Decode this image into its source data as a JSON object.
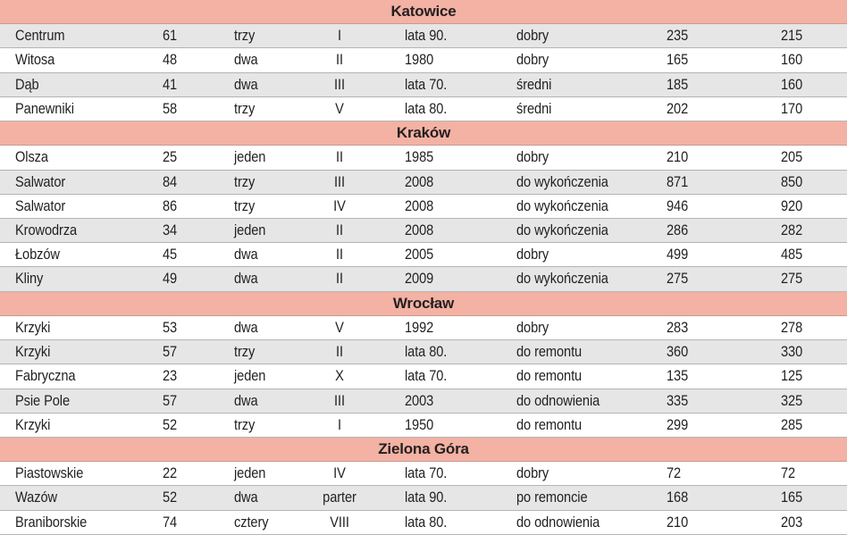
{
  "sections": [
    {
      "city": "Katowice",
      "rows": [
        [
          "Centrum",
          "61",
          "trzy",
          "I",
          "lata 90.",
          "dobry",
          "235",
          "215"
        ],
        [
          "Witosa",
          "48",
          "dwa",
          "II",
          "1980",
          "dobry",
          "165",
          "160"
        ],
        [
          "Dąb",
          "41",
          "dwa",
          "III",
          "lata 70.",
          "średni",
          "185",
          "160"
        ],
        [
          "Panewniki",
          "58",
          "trzy",
          "V",
          "lata 80.",
          "średni",
          "202",
          "170"
        ]
      ]
    },
    {
      "city": "Kraków",
      "rows": [
        [
          "Olsza",
          "25",
          "jeden",
          "II",
          "1985",
          "dobry",
          "210",
          "205"
        ],
        [
          "Salwator",
          "84",
          "trzy",
          "III",
          "2008",
          "do wykończenia",
          "871",
          "850"
        ],
        [
          "Salwator",
          "86",
          "trzy",
          "IV",
          "2008",
          "do wykończenia",
          "946",
          "920"
        ],
        [
          "Krowodrza",
          "34",
          "jeden",
          "II",
          "2008",
          "do wykończenia",
          "286",
          "282"
        ],
        [
          "Łobzów",
          "45",
          "dwa",
          "II",
          "2005",
          "dobry",
          "499",
          "485"
        ],
        [
          "Kliny",
          "49",
          "dwa",
          "II",
          "2009",
          "do wykończenia",
          "275",
          "275"
        ]
      ]
    },
    {
      "city": "Wrocław",
      "rows": [
        [
          "Krzyki",
          "53",
          "dwa",
          "V",
          "1992",
          "dobry",
          "283",
          "278"
        ],
        [
          "Krzyki",
          "57",
          "trzy",
          "II",
          "lata 80.",
          "do remontu",
          "360",
          "330"
        ],
        [
          "Fabryczna",
          "23",
          "jeden",
          "X",
          "lata 70.",
          "do remontu",
          "135",
          "125"
        ],
        [
          "Psie Pole",
          "57",
          "dwa",
          "III",
          "2003",
          "do odnowienia",
          "335",
          "325"
        ],
        [
          "Krzyki",
          "52",
          "trzy",
          "I",
          "1950",
          "do remontu",
          "299",
          "285"
        ]
      ]
    },
    {
      "city": "Zielona Góra",
      "rows": [
        [
          "Piastowskie",
          "22",
          "jeden",
          "IV",
          "lata 70.",
          "dobry",
          "72",
          "72"
        ],
        [
          "Wazów",
          "52",
          "dwa",
          "parter",
          "lata 90.",
          "po remoncie",
          "168",
          "165"
        ],
        [
          "Braniborskie",
          "74",
          "cztery",
          "VIII",
          "lata 80.",
          "do odnowienia",
          "210",
          "203"
        ]
      ]
    }
  ],
  "colors": {
    "section_bg": "#f3b2a3",
    "row_alt_bg": "#e6e6e6",
    "row_plain_bg": "#ffffff",
    "text": "#231f20"
  }
}
